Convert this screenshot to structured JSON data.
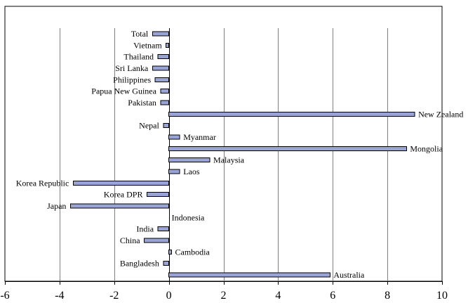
{
  "chart_data": {
    "type": "bar",
    "orientation": "horizontal",
    "title": "",
    "xlabel": "",
    "ylabel": "",
    "xlim": [
      -6,
      10
    ],
    "xticks": [
      "-6",
      "-4",
      "-2",
      "0",
      "2",
      "4",
      "6",
      "8",
      "10"
    ],
    "grid": true,
    "legend": "none",
    "bar_color": "#9aa3d6",
    "bar_outline": "#000000",
    "categories": [
      "Total",
      "Vietnam",
      "Thailand",
      "Sri Lanka",
      "Philippines",
      "Papua New Guinea",
      "Pakistan",
      "New Zealand",
      "Nepal",
      "Myanmar",
      "Mongolia",
      "Malaysia",
      "Laos",
      "Korea Republic",
      "Korea DPR",
      "Japan",
      "Indonesia",
      "India",
      "China",
      "Cambodia",
      "Bangladesh",
      "Australia"
    ],
    "values": [
      -0.6,
      -0.1,
      -0.4,
      -0.6,
      -0.5,
      -0.3,
      -0.3,
      9.0,
      -0.2,
      0.4,
      8.7,
      1.5,
      0.4,
      -3.5,
      -0.8,
      -3.6,
      0.0,
      -0.4,
      -0.9,
      0.1,
      -0.2,
      5.9
    ]
  }
}
